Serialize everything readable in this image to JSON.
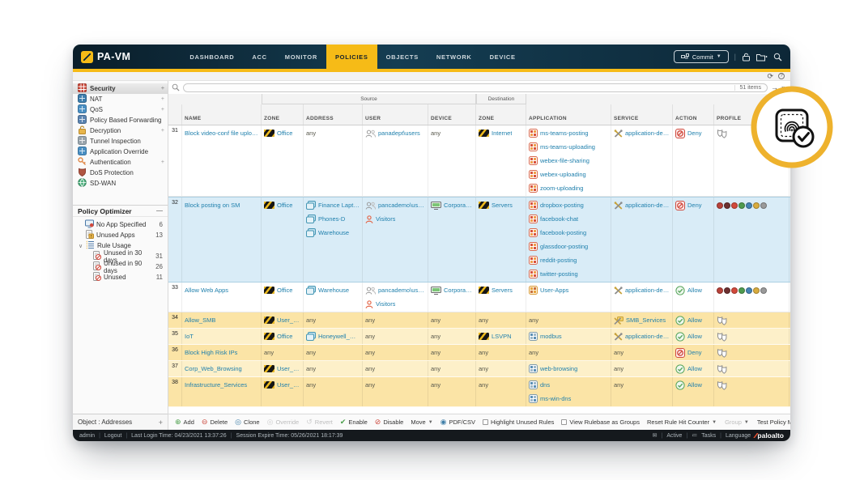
{
  "app": {
    "brand": "PA-VM"
  },
  "nav": {
    "tabs": [
      "DASHBOARD",
      "ACC",
      "MONITOR",
      "POLICIES",
      "OBJECTS",
      "NETWORK",
      "DEVICE"
    ],
    "active_tab": "POLICIES",
    "commit_label": "Commit",
    "right_icons": [
      "commit-icon",
      "lock-icon",
      "save-config-icon",
      "search-icon"
    ]
  },
  "topstrip": {
    "icons": [
      "refresh-icon",
      "help-icon"
    ]
  },
  "searchrow": {
    "items_count": "51 items",
    "placeholder": ""
  },
  "sidebar": {
    "items": [
      {
        "label": "Security",
        "icon": "security",
        "selected": true,
        "expander": true
      },
      {
        "label": "NAT",
        "icon": "nat",
        "expander": true
      },
      {
        "label": "QoS",
        "icon": "qos",
        "expander": true
      },
      {
        "label": "Policy Based Forwarding",
        "icon": "pbf"
      },
      {
        "label": "Decryption",
        "icon": "decryption",
        "expander": true
      },
      {
        "label": "Tunnel Inspection",
        "icon": "tunnel"
      },
      {
        "label": "Application Override",
        "icon": "app-override"
      },
      {
        "label": "Authentication",
        "icon": "authentication",
        "expander": true
      },
      {
        "label": "DoS Protection",
        "icon": "dos"
      },
      {
        "label": "SD-WAN",
        "icon": "sdwan"
      }
    ],
    "policy_optimizer": {
      "title": "Policy Optimizer",
      "items": [
        {
          "label": "No App Specified",
          "count": "6",
          "icon": "noapp",
          "indent": 1
        },
        {
          "label": "Unused Apps",
          "count": "13",
          "icon": "unusedapps",
          "indent": 1
        },
        {
          "label": "Rule Usage",
          "icon": "ruleusage",
          "chevron": true,
          "indent": 0
        },
        {
          "label": "Unused in 30 days",
          "count": "31",
          "icon": "unusedrule",
          "indent": 2
        },
        {
          "label": "Unused in 90 days",
          "count": "26",
          "icon": "unusedrule",
          "indent": 2
        },
        {
          "label": "Unused",
          "count": "11",
          "icon": "unusedrule",
          "indent": 2
        }
      ]
    },
    "footer_label": "Object : Addresses"
  },
  "table": {
    "group_headers": {
      "source": "Source",
      "destination": "Destination"
    },
    "columns": [
      "",
      "NAME",
      "ZONE",
      "ADDRESS",
      "USER",
      "DEVICE",
      "ZONE",
      "APPLICATION",
      "SERVICE",
      "ACTION",
      "PROFILE"
    ],
    "profile_strip_colors": [
      "#b8423a",
      "#6d3030",
      "#d2493b",
      "#4f9b4f",
      "#4584b5",
      "#d9ac3e",
      "#9a9a9a"
    ],
    "rules": [
      {
        "id": "31",
        "name": "Block video-conf file uploading",
        "highlight": "none",
        "source_zone": [
          {
            "text": "Office",
            "icon": "zone"
          }
        ],
        "source_address": [
          {
            "text": "any"
          }
        ],
        "source_user": [
          {
            "text": "panadept\\users",
            "icon": "users"
          }
        ],
        "source_device": [
          {
            "text": "any"
          }
        ],
        "dest_zone": [
          {
            "text": "Internet",
            "icon": "zone"
          }
        ],
        "application": [
          {
            "text": "ms-teams-posting",
            "icon": "app"
          },
          {
            "text": "ms-teams-uploading",
            "icon": "app"
          },
          {
            "text": "webex-file-sharing",
            "icon": "app"
          },
          {
            "text": "webex-uploading",
            "icon": "app"
          },
          {
            "text": "zoom-uploading",
            "icon": "app"
          }
        ],
        "service": [
          {
            "text": "application-default",
            "icon": "service"
          }
        ],
        "action": {
          "text": "Deny",
          "icon": "deny"
        },
        "profile": "shield"
      },
      {
        "id": "32",
        "name": "Block posting on SM",
        "highlight": "selected",
        "source_zone": [
          {
            "text": "Office",
            "icon": "zone"
          }
        ],
        "source_address": [
          {
            "text": "Finance Laptops",
            "icon": "address"
          },
          {
            "text": "Phones-D",
            "icon": "address"
          },
          {
            "text": "Warehouse",
            "icon": "address"
          }
        ],
        "source_user": [
          {
            "text": "pancademo\\users",
            "icon": "users"
          },
          {
            "text": "Visitors",
            "icon": "user-red"
          }
        ],
        "source_device": [
          {
            "text": "Corporate T...",
            "icon": "device"
          }
        ],
        "dest_zone": [
          {
            "text": "Servers",
            "icon": "zone"
          }
        ],
        "application": [
          {
            "text": "dropbox-posting",
            "icon": "app"
          },
          {
            "text": "facebook-chat",
            "icon": "app"
          },
          {
            "text": "facebook-posting",
            "icon": "app"
          },
          {
            "text": "glassdoor-posting",
            "icon": "app"
          },
          {
            "text": "reddit-posting",
            "icon": "app"
          },
          {
            "text": "twitter-posting",
            "icon": "app"
          }
        ],
        "service": [
          {
            "text": "application-default",
            "icon": "service"
          }
        ],
        "action": {
          "text": "Deny",
          "icon": "deny"
        },
        "profile": "strip"
      },
      {
        "id": "33",
        "name": "Allow Web Apps",
        "highlight": "none",
        "source_zone": [
          {
            "text": "Office",
            "icon": "zone"
          }
        ],
        "source_address": [
          {
            "text": "Warehouse",
            "icon": "address"
          }
        ],
        "source_user": [
          {
            "text": "pancademo\\users",
            "icon": "users"
          },
          {
            "text": "Visitors",
            "icon": "user-red"
          }
        ],
        "source_device": [
          {
            "text": "Corporate T...",
            "icon": "device"
          }
        ],
        "dest_zone": [
          {
            "text": "Servers",
            "icon": "zone"
          }
        ],
        "application": [
          {
            "text": "User-Apps",
            "icon": "appgroup"
          }
        ],
        "service": [
          {
            "text": "application-default",
            "icon": "service"
          }
        ],
        "action": {
          "text": "Allow",
          "icon": "allow"
        },
        "profile": "strip"
      },
      {
        "id": "34",
        "name": "Allow_SMB",
        "highlight": "unused",
        "source_zone": [
          {
            "text": "User_Tap",
            "icon": "zone"
          }
        ],
        "source_address": [
          {
            "text": "any"
          }
        ],
        "source_user": [
          {
            "text": "any"
          }
        ],
        "source_device": [
          {
            "text": "any"
          }
        ],
        "dest_zone": [
          {
            "text": "any"
          }
        ],
        "application": [
          {
            "text": "any"
          }
        ],
        "service": [
          {
            "text": "SMB_Services",
            "icon": "servicegroup"
          }
        ],
        "action": {
          "text": "Allow",
          "icon": "allow"
        },
        "profile": "shield"
      },
      {
        "id": "35",
        "name": "IoT",
        "highlight": "unused",
        "alt": true,
        "source_zone": [
          {
            "text": "Office",
            "icon": "zone"
          }
        ],
        "source_address": [
          {
            "text": "Honeywell_Devi...",
            "icon": "address"
          }
        ],
        "source_user": [
          {
            "text": "any"
          }
        ],
        "source_device": [
          {
            "text": "any"
          }
        ],
        "dest_zone": [
          {
            "text": "LSVPN",
            "icon": "zone"
          }
        ],
        "application": [
          {
            "text": "modbus",
            "icon": "app-blue"
          }
        ],
        "service": [
          {
            "text": "application-default",
            "icon": "service"
          }
        ],
        "action": {
          "text": "Allow",
          "icon": "allow"
        },
        "profile": "shield"
      },
      {
        "id": "36",
        "name": "Block High Risk IPs",
        "highlight": "unused",
        "source_zone": [
          {
            "text": "any"
          }
        ],
        "source_address": [
          {
            "text": "any"
          }
        ],
        "source_user": [
          {
            "text": "any"
          }
        ],
        "source_device": [
          {
            "text": "any"
          }
        ],
        "dest_zone": [
          {
            "text": "any"
          }
        ],
        "application": [
          {
            "text": "any"
          }
        ],
        "service": [
          {
            "text": "any"
          }
        ],
        "action": {
          "text": "Deny",
          "icon": "deny"
        },
        "profile": "shield"
      },
      {
        "id": "37",
        "name": "Corp_Web_Browsing",
        "highlight": "unused",
        "alt": true,
        "source_zone": [
          {
            "text": "User_Tap",
            "icon": "zone"
          }
        ],
        "source_address": [
          {
            "text": "any"
          }
        ],
        "source_user": [
          {
            "text": "any"
          }
        ],
        "source_device": [
          {
            "text": "any"
          }
        ],
        "dest_zone": [
          {
            "text": "any"
          }
        ],
        "application": [
          {
            "text": "web-browsing",
            "icon": "app-blue"
          }
        ],
        "service": [
          {
            "text": "any"
          }
        ],
        "action": {
          "text": "Allow",
          "icon": "allow"
        },
        "profile": "shield"
      },
      {
        "id": "38",
        "name": "Infrastructure_Services",
        "highlight": "unused",
        "source_zone": [
          {
            "text": "User_Tap",
            "icon": "zone"
          }
        ],
        "source_address": [
          {
            "text": "any"
          }
        ],
        "source_user": [
          {
            "text": "any"
          }
        ],
        "source_device": [
          {
            "text": "any"
          }
        ],
        "dest_zone": [
          {
            "text": "any"
          }
        ],
        "application": [
          {
            "text": "dns",
            "icon": "app-blue"
          },
          {
            "text": "ms-win-dns",
            "icon": "app-blue"
          }
        ],
        "service": [
          {
            "text": "any"
          }
        ],
        "action": {
          "text": "Allow",
          "icon": "allow"
        },
        "profile": "shield"
      }
    ]
  },
  "actionbar": {
    "buttons": [
      {
        "label": "Add",
        "icon": "add",
        "color": "#4a9e4a"
      },
      {
        "label": "Delete",
        "icon": "delete",
        "color": "#cc4a3f"
      },
      {
        "label": "Clone",
        "icon": "clone",
        "color": "#3f7fa8"
      },
      {
        "label": "Override",
        "icon": "override",
        "color": "#c8c8c8",
        "disabled": true
      },
      {
        "label": "Revert",
        "icon": "revert",
        "color": "#c8c8c8",
        "disabled": true
      },
      {
        "label": "Enable",
        "icon": "enable",
        "color": "#4a9e4a"
      },
      {
        "label": "Disable",
        "icon": "disable",
        "color": "#cc4a3f"
      },
      {
        "label": "Move",
        "icon": "none",
        "caret": true
      },
      {
        "label": "PDF/CSV",
        "icon": "pdf",
        "color": "#3f7fa8"
      }
    ],
    "checkboxes": [
      "Highlight Unused Rules",
      "View Rulebase as Groups"
    ],
    "right": [
      {
        "label": "Reset Rule Hit Counter",
        "caret": true
      },
      {
        "label": "Group",
        "caret": true,
        "disabled": true
      },
      {
        "label": "Test Policy Match"
      }
    ]
  },
  "statusbar": {
    "left": [
      "admin",
      "Logout",
      "Last Login Time: 04/23/2021 13:37:26",
      "Session Expire Time: 05/26/2021 18:17:39"
    ],
    "right": [
      "Active",
      "Tasks",
      "Language"
    ],
    "brand": "paloalto"
  },
  "overlay_badge": {
    "icon": "fingerprint-verified"
  }
}
